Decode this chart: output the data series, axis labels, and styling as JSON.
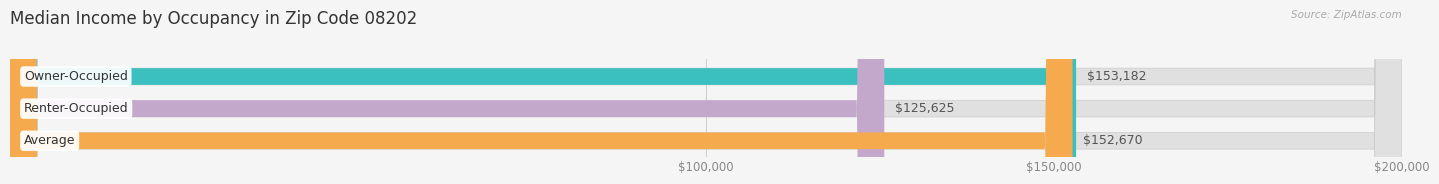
{
  "title": "Median Income by Occupancy in Zip Code 08202",
  "source": "Source: ZipAtlas.com",
  "categories": [
    "Owner-Occupied",
    "Renter-Occupied",
    "Average"
  ],
  "values": [
    153182,
    125625,
    152670
  ],
  "bar_colors": [
    "#3bbfbf",
    "#c4a8cc",
    "#f5aa4e"
  ],
  "bar_labels": [
    "$153,182",
    "$125,625",
    "$152,670"
  ],
  "xmin": 0,
  "xmax": 200000,
  "xticks": [
    100000,
    150000,
    200000
  ],
  "xtick_labels": [
    "$100,000",
    "$150,000",
    "$200,000"
  ],
  "track_color": "#e0e0e0",
  "background_color": "#f5f5f5",
  "bar_label_color": "#555555",
  "cat_label_color": "#333333",
  "title_color": "#333333",
  "source_color": "#aaaaaa",
  "title_fontsize": 12,
  "label_fontsize": 9,
  "bar_height": 0.52,
  "bar_gap": 0.18
}
